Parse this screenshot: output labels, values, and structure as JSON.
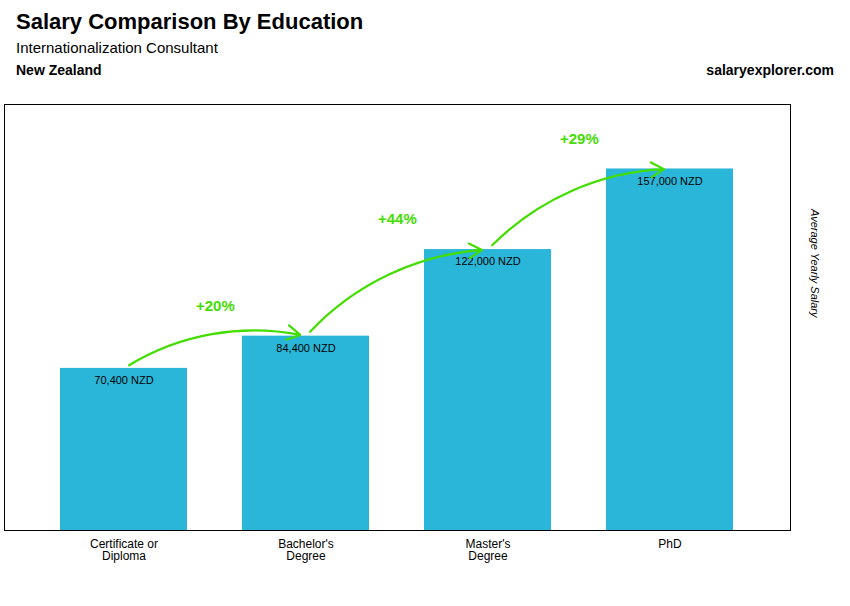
{
  "chart_data": {
    "type": "bar",
    "title": "Salary Comparison By Education",
    "subtitle": "Internationalization Consultant",
    "ylabel": "Average Yearly Salary",
    "categories": [
      "Certificate or\nDiploma",
      "Bachelor's\nDegree",
      "Master's\nDegree",
      "PhD"
    ],
    "values": [
      70400,
      84400,
      122000,
      157000
    ],
    "value_labels": [
      "70,400 NZD",
      "84,400 NZD",
      "122,000 NZD",
      "157,000 NZD"
    ],
    "data_labels": true,
    "color": "#29b6d8",
    "ylim": [
      0,
      185000
    ],
    "tick_labels": "x",
    "grid": false,
    "annotations": [
      {
        "text": "New Zealand"
      },
      {
        "text": "salaryexplorer.com"
      },
      {
        "text": "+20%",
        "from": "Certificate or\nDiploma",
        "to": "Bachelor's\nDegree",
        "color": "#44dd00"
      },
      {
        "text": "+44%",
        "from": "Bachelor's\nDegree",
        "to": "Master's\nDegree",
        "color": "#44dd00"
      },
      {
        "text": "+29%",
        "from": "Master's\nDegree",
        "to": "PhD",
        "color": "#44dd00"
      }
    ]
  }
}
